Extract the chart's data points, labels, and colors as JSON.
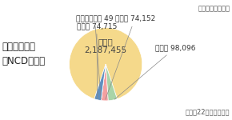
{
  "title_left": "【貯金残高】\n（NCD含む）",
  "note_unit": "（単位：百万円）",
  "note_date": "（平成22年度末現在）",
  "slices": [
    {
      "label": "正会員",
      "value": 2187455,
      "color": "#F5D98B",
      "label_inside": true
    },
    {
      "label": "その他",
      "value": 98096,
      "color": "#A8D4A8"
    },
    {
      "label": "地公体",
      "value": 74152,
      "color": "#F4A0A0"
    },
    {
      "label": "会員の組合員",
      "value": 49,
      "color": "#A0B4D4"
    },
    {
      "label": "准会員",
      "value": 74715,
      "color": "#6090C0"
    }
  ],
  "label_fontsize": 6.5,
  "inside_label_fontsize": 7.5,
  "title_fontsize": 8.5,
  "note_fontsize": 6.0,
  "bg_color": "#FFFFFF"
}
